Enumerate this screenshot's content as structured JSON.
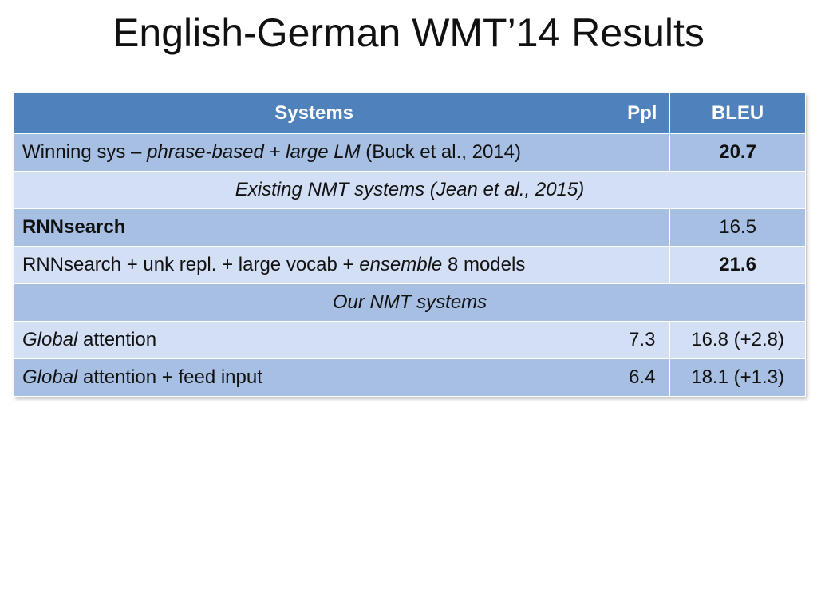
{
  "slide": {
    "title": "English-German WMT’14 Results"
  },
  "table": {
    "headers": {
      "systems": "Systems",
      "ppl": "Ppl",
      "bleu": "BLEU"
    },
    "rows": [
      {
        "system_prefix": "Winning sys – ",
        "system_italic": "phrase-based + large LM",
        "system_suffix": " (Buck et al., 2014)",
        "ppl": "",
        "bleu": "20.7"
      },
      {
        "section": "Existing NMT systems (Jean et al., 2015)"
      },
      {
        "system_bold": "RNNsearch",
        "ppl": "",
        "bleu": "16.5"
      },
      {
        "system_prefix": "RNNsearch + unk repl. + large vocab + ",
        "system_italic": "ensemble",
        "system_suffix": " 8 models",
        "ppl": "",
        "bleu": "21.6"
      },
      {
        "section": "Our NMT systems"
      },
      {
        "system_italic": "Global",
        "system_suffix": " attention",
        "ppl": "7.3",
        "bleu": "16.8 (+2.8)"
      },
      {
        "system_italic": "Global",
        "system_suffix": " attention + feed input",
        "ppl": "6.4",
        "bleu": "18.1 (+1.3)"
      }
    ]
  }
}
